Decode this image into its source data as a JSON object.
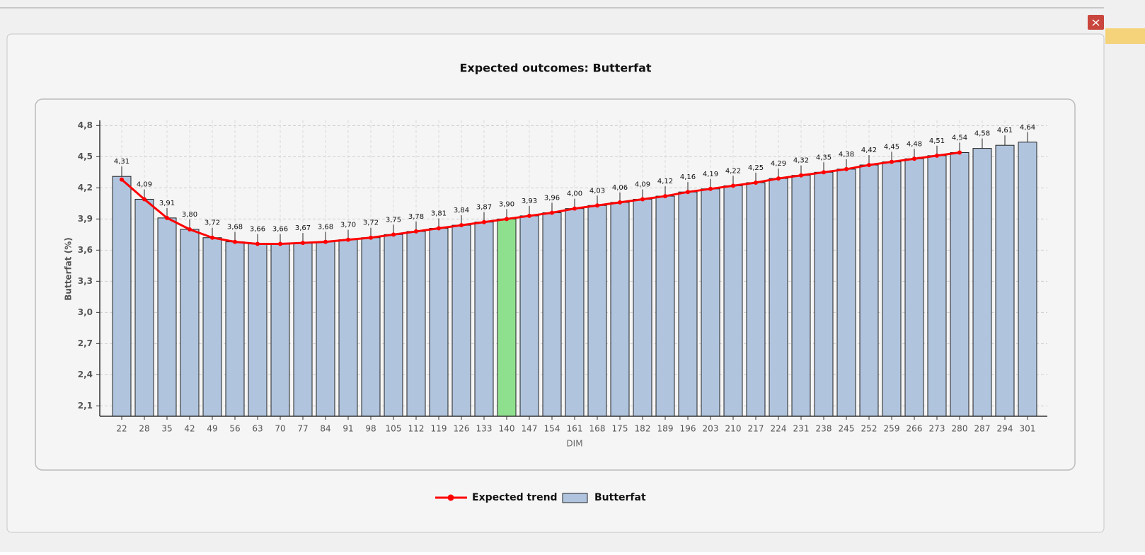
{
  "chart_data": {
    "type": "bar",
    "title": "Expected outcomes: Butterfat",
    "x_label": "DIM",
    "y_label": "Butterfat (%)",
    "categories": [
      "22",
      "28",
      "35",
      "42",
      "49",
      "56",
      "63",
      "70",
      "77",
      "84",
      "91",
      "98",
      "105",
      "112",
      "119",
      "126",
      "133",
      "140",
      "147",
      "154",
      "161",
      "168",
      "175",
      "182",
      "189",
      "196",
      "203",
      "210",
      "217",
      "224",
      "231",
      "238",
      "245",
      "252",
      "259",
      "266",
      "273",
      "280",
      "287",
      "294",
      "301"
    ],
    "ylim": [
      2.0,
      4.85
    ],
    "yticks": [
      {
        "value": 2.1,
        "label": "2,1"
      },
      {
        "value": 2.4,
        "label": "2,4"
      },
      {
        "value": 2.7,
        "label": "2,7"
      },
      {
        "value": 3.0,
        "label": "3,0"
      },
      {
        "value": 3.3,
        "label": "3,3"
      },
      {
        "value": 3.6,
        "label": "3,6"
      },
      {
        "value": 3.9,
        "label": "3,9"
      },
      {
        "value": 4.2,
        "label": "4,2"
      },
      {
        "value": 4.5,
        "label": "4,5"
      },
      {
        "value": 4.8,
        "label": "4,8"
      }
    ],
    "grid": true,
    "highlight_index": 17,
    "highlight_color": "#8ee08e",
    "series": [
      {
        "name": "Expected trend",
        "type": "line",
        "color": "#ff0000",
        "values": [
          4.28,
          4.09,
          3.91,
          3.8,
          3.72,
          3.68,
          3.66,
          3.66,
          3.67,
          3.68,
          3.7,
          3.72,
          3.75,
          3.78,
          3.81,
          3.84,
          3.87,
          3.9,
          3.93,
          3.96,
          4.0,
          4.03,
          4.06,
          4.09,
          4.12,
          4.16,
          4.19,
          4.22,
          4.25,
          4.29,
          4.32,
          4.35,
          4.38,
          4.42,
          4.45,
          4.48,
          4.51,
          4.54,
          null,
          null,
          null
        ]
      },
      {
        "name": "Butterfat",
        "type": "bar",
        "color": "#b0c4de",
        "values": [
          4.31,
          4.09,
          3.91,
          3.8,
          3.72,
          3.68,
          3.66,
          3.66,
          3.67,
          3.68,
          3.7,
          3.72,
          3.75,
          3.78,
          3.81,
          3.84,
          3.87,
          3.9,
          3.93,
          3.96,
          4.0,
          4.03,
          4.06,
          4.09,
          4.12,
          4.16,
          4.19,
          4.22,
          4.25,
          4.29,
          4.32,
          4.35,
          4.38,
          4.42,
          4.45,
          4.48,
          4.51,
          4.54,
          4.58,
          4.61,
          4.64
        ],
        "value_labels": [
          "4,31",
          "4,09",
          "3,91",
          "3,80",
          "3,72",
          "3,68",
          "3,66",
          "3,66",
          "3,67",
          "3,68",
          "3,70",
          "3,72",
          "3,75",
          "3,78",
          "3,81",
          "3,84",
          "3,87",
          "3,90",
          "3,93",
          "3,96",
          "4,00",
          "4,03",
          "4,06",
          "4,09",
          "4,12",
          "4,16",
          "4,19",
          "4,22",
          "4,25",
          "4,29",
          "4,32",
          "4,35",
          "4,38",
          "4,42",
          "4,45",
          "4,48",
          "4,51",
          "4,54",
          "4,58",
          "4,61",
          "4,64"
        ]
      }
    ]
  }
}
